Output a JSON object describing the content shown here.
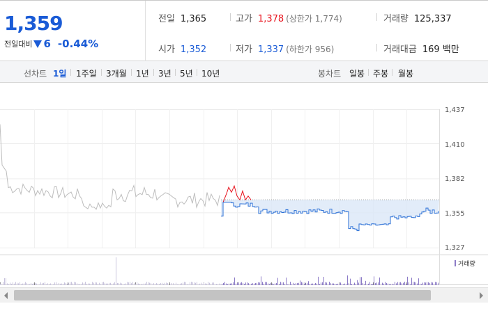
{
  "quote": {
    "price": "1,359",
    "change_label": "전일대비",
    "change_icon": "down-triangle-icon",
    "change_value": "6",
    "change_pct": "-0.44%",
    "prev_close_label": "전일",
    "prev_close": "1,365",
    "open_label": "시가",
    "open": "1,352",
    "high_label": "고가",
    "high": "1,378",
    "upper_limit": "(상한가 1,774)",
    "low_label": "저가",
    "low": "1,337",
    "lower_limit": "(하한가 956)",
    "volume_label": "거래량",
    "volume": "125,337",
    "amount_label": "거래대금",
    "amount": "169 백만"
  },
  "tabs": {
    "line_label": "선차트",
    "line_items": [
      "1일",
      "1주일",
      "3개월",
      "1년",
      "3년",
      "5년",
      "10년"
    ],
    "line_active": 0,
    "candle_label": "봉차트",
    "candle_items": [
      "일봉",
      "주봉",
      "월봉"
    ]
  },
  "chart_data": {
    "type": "line",
    "y_ticks": [
      "1,437",
      "1,410",
      "1,382",
      "1,355",
      "1,327"
    ],
    "ylim": [
      1327,
      1437
    ],
    "reference_value": 1365,
    "volume_legend": "거래량",
    "colors": {
      "prior": "#bdbdbd",
      "up": "#e8131d",
      "down": "#2a6fd6",
      "fill": "#dbe7f7"
    }
  }
}
